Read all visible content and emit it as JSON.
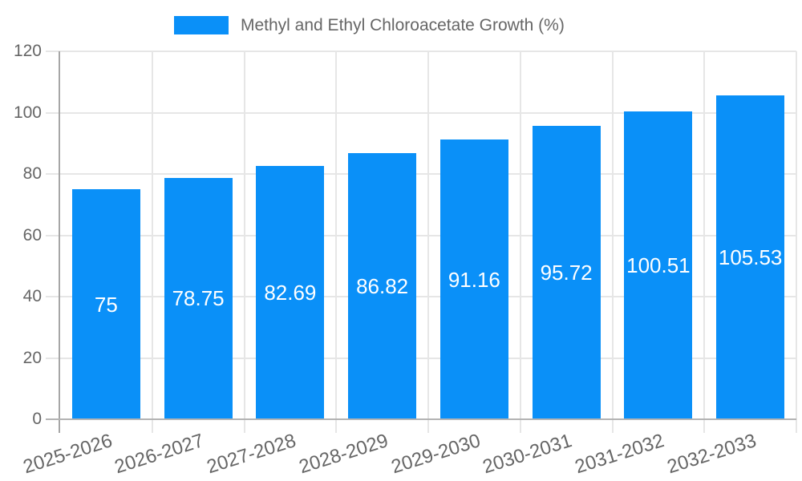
{
  "chart_data": {
    "type": "bar",
    "title": "Methyl and Ethyl Chloroacetate Growth (%)",
    "categories": [
      "2025-2026",
      "2026-2027",
      "2027-2028",
      "2028-2029",
      "2029-2030",
      "2030-2031",
      "2031-2032",
      "2032-2033"
    ],
    "series": [
      {
        "name": "Methyl and Ethyl Chloroacetate Growth (%)",
        "values": [
          75,
          78.75,
          82.69,
          86.82,
          91.16,
          95.72,
          100.51,
          105.53
        ]
      }
    ],
    "value_labels": [
      "75",
      "78.75",
      "82.69",
      "86.82",
      "91.16",
      "95.72",
      "100.51",
      "105.53"
    ],
    "xlabel": "",
    "ylabel": "",
    "ylim": [
      0,
      120
    ],
    "yticks": [
      0,
      20,
      40,
      60,
      80,
      100,
      120
    ],
    "grid": true,
    "legend_position": "top"
  },
  "colors": {
    "bar": "#0a90f8",
    "grid": "#e6e6e6",
    "axis": "#a6a6a6",
    "baseline": "#b3b3b3",
    "text": "#666666",
    "value_text": "#ffffff",
    "background": "#ffffff"
  }
}
